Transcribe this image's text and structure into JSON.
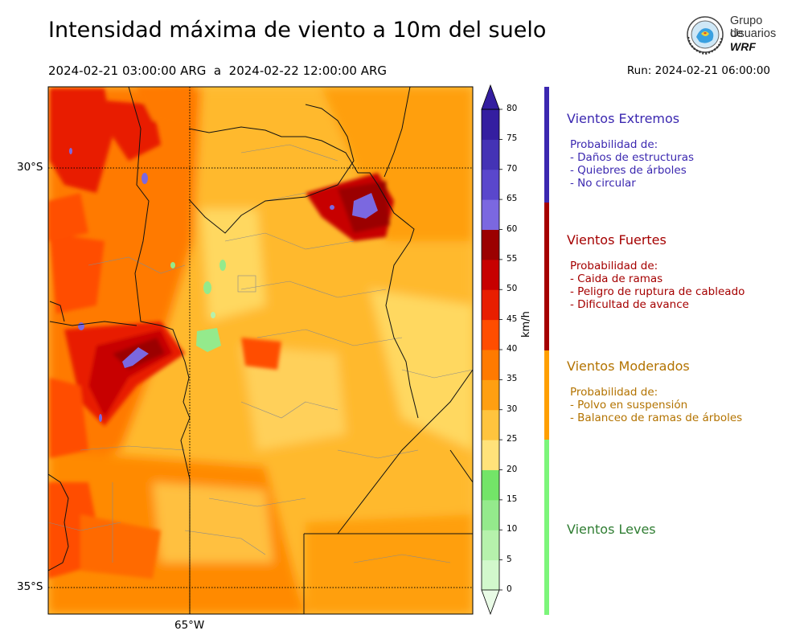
{
  "header": {
    "title": "Intensidad máxima de viento a 10m del suelo",
    "period": "2024-02-21 03:00:00 ARG  a  2024-02-22 12:00:00 ARG",
    "run": "Run: 2024-02-21 06:00:00"
  },
  "logo": {
    "line1": "Grupo de",
    "line2": "Usuarios",
    "line3": "WRF"
  },
  "map": {
    "lat_labels": [
      "30°S",
      "35°S"
    ],
    "lon_labels": [
      "65°W"
    ]
  },
  "colorbar": {
    "unit": "km/h",
    "levels": [
      0,
      5,
      10,
      15,
      20,
      25,
      30,
      35,
      40,
      45,
      50,
      55,
      60,
      65,
      70,
      75,
      80
    ],
    "tick_labels": [
      "0",
      "5",
      "10",
      "15",
      "20",
      "25",
      "30",
      "35",
      "40",
      "45",
      "50",
      "55",
      "60",
      "65",
      "70",
      "75",
      "80"
    ],
    "colors": [
      "#e9fbe6",
      "#d2f8cc",
      "#b6f1ac",
      "#94ea8c",
      "#73e468",
      "#ffe27a",
      "#ffc43e",
      "#ff9f11",
      "#ff7a00",
      "#ff4d00",
      "#e81e00",
      "#c70000",
      "#9b0000",
      "#7b68e0",
      "#5a47cc",
      "#4433b5",
      "#341ea0"
    ]
  },
  "legend": {
    "categories": [
      {
        "title": "Vientos Extremos",
        "color": "#3b28b0",
        "lines": [
          "Probabilidad de:",
          "- Daños de estructuras",
          "- Quiebres de árboles",
          "- No circular"
        ]
      },
      {
        "title": "Vientos Fuertes",
        "color": "#a50000",
        "lines": [
          "Probabilidad de:",
          "- Caida de ramas",
          "- Peligro de ruptura de cableado",
          "- Dificultad de avance"
        ]
      },
      {
        "title": "Vientos Moderados",
        "color": "#b37300",
        "lines": [
          "Probabilidad de:",
          "- Polvo en suspensión",
          "- Balanceo de ramas de árboles"
        ]
      },
      {
        "title": "Vientos Leves",
        "color": "#2f7d32",
        "lines": []
      }
    ],
    "bar_colors": [
      "#3b28b0",
      "#a50000",
      "#ff9f00",
      "#7cf57a"
    ]
  }
}
